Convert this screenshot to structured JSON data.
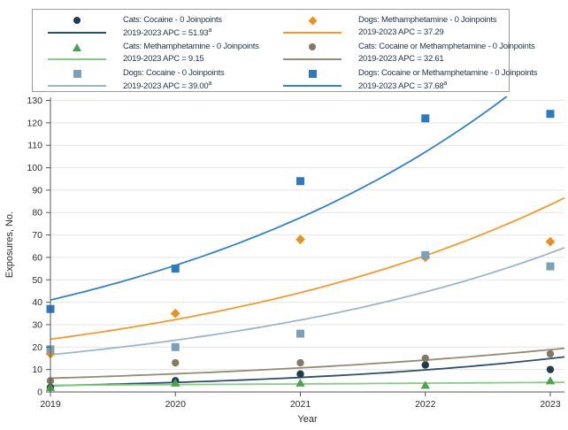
{
  "figure": {
    "y_axis_label": "Exposures, No.",
    "x_axis_label": "Year"
  },
  "chart_data": {
    "type": "scatter",
    "title": "",
    "xlabel": "Year",
    "ylabel": "Exposures, No.",
    "x": [
      2019,
      2020,
      2021,
      2022,
      2023
    ],
    "x_ticks": [
      "2019",
      "2020",
      "2021",
      "2022",
      "2023"
    ],
    "y_ticks": [
      0,
      10,
      20,
      30,
      40,
      50,
      60,
      70,
      80,
      90,
      100,
      110,
      120,
      130
    ],
    "ylim": [
      0,
      130
    ],
    "grid": "horizontal",
    "legend_position": "top",
    "legend_columns": 2,
    "series": [
      {
        "legend_label": "Cats: Cocaine - 0 Joinpoints",
        "apc_label": "2019-2023 APC = 51.93",
        "apc_superscript": "a",
        "apc_value": 51.93,
        "marker": "circle",
        "marker_color": "#1d3c50",
        "line_color": "#2b5068",
        "values": [
          2,
          5,
          8,
          12,
          10
        ],
        "trend_2019_value": 2.8
      },
      {
        "legend_label": "Cats: Methamphetamine - 0 Joinpoints",
        "apc_label": "2019-2023 APC = 9.15",
        "apc_superscript": "",
        "apc_value": 9.15,
        "marker": "triangle",
        "marker_color": "#4aa54a",
        "line_color": "#85cb85",
        "values": [
          2,
          4,
          4,
          3,
          5
        ],
        "trend_2019_value": 3.0
      },
      {
        "legend_label": "Dogs: Cocaine - 0 Joinpoints",
        "apc_label": "2019-2023 APC = 39.00",
        "apc_superscript": "a",
        "apc_value": 39.0,
        "marker": "square",
        "marker_color": "#7aa1b7",
        "line_color": "#9db6c7",
        "values": [
          19,
          20,
          26,
          61,
          56
        ],
        "trend_2019_value": 16.6
      },
      {
        "legend_label": "Dogs: Methamphetamine - 0 Joinpoints",
        "apc_label": "2019-2023 APC = 37.29",
        "apc_superscript": "",
        "apc_value": 37.29,
        "marker": "diamond",
        "marker_color": "#ee8f1d",
        "line_color": "#f39b28",
        "values": [
          17,
          35,
          68,
          60,
          67
        ],
        "trend_2019_value": 23.5
      },
      {
        "legend_label": "Cats: Cocaine or Methamphetamine - 0 Joinpoints",
        "apc_label": "2019-2023 APC = 32.61",
        "apc_superscript": "",
        "apc_value": 32.61,
        "marker": "circle",
        "marker_color": "#847962",
        "line_color": "#958a72",
        "values": [
          5,
          13,
          13,
          15,
          17
        ],
        "trend_2019_value": 6.1
      },
      {
        "legend_label": "Dogs: Cocaine or Methamphetamine - 0 Joinpoints",
        "apc_label": "2019-2023 APC = 37.68",
        "apc_superscript": "a",
        "apc_value": 37.68,
        "marker": "square",
        "marker_color": "#2a79c2",
        "line_color": "#3181cb",
        "values": [
          37,
          55,
          94,
          122,
          124
        ],
        "trend_2019_value": 41.0
      }
    ]
  }
}
